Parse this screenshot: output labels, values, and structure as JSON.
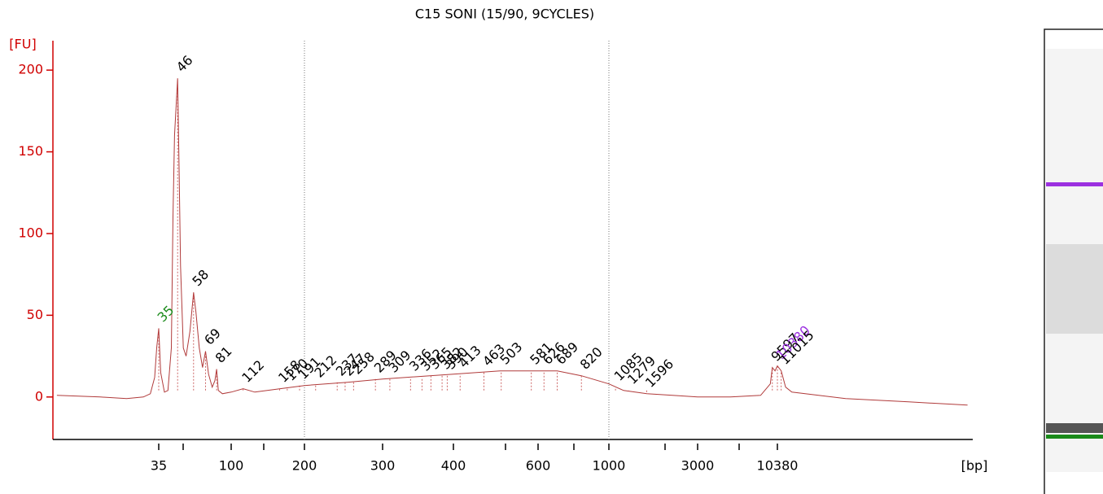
{
  "chart_data": {
    "type": "line",
    "title": "C15 SONI (15/90, 9CYCLES)",
    "ylabel": "[FU]",
    "xlabel": "[bp]",
    "xscale": "ladder",
    "ylim": [
      -26,
      218
    ],
    "yticks": [
      0,
      50,
      100,
      150,
      200
    ],
    "xticks": [
      35,
      100,
      200,
      300,
      400,
      600,
      1000,
      3000,
      10380
    ],
    "region": [
      200,
      1000
    ],
    "series": [
      {
        "name": "C15",
        "color": "#b03a3a",
        "x": [
          8,
          15,
          22,
          28,
          31,
          33,
          34,
          35,
          36,
          38,
          40,
          42,
          43,
          44,
          46,
          47,
          48,
          50,
          52,
          55,
          58,
          60,
          63,
          66,
          69,
          72,
          76,
          79,
          81,
          83,
          88,
          100,
          112,
          125,
          158,
          200,
          250,
          300,
          400,
          500,
          600,
          689,
          820,
          1000,
          1200,
          1600,
          2200,
          3000,
          5000,
          8000,
          9300,
          9597,
          10000,
          10380,
          11015,
          11800,
          13000,
          16000,
          30000,
          80000,
          200000
        ],
        "y": [
          1,
          0,
          -1,
          0,
          2,
          12,
          30,
          42,
          15,
          3,
          4,
          30,
          110,
          160,
          195,
          140,
          80,
          30,
          25,
          40,
          64,
          52,
          30,
          18,
          28,
          14,
          6,
          10,
          17,
          4,
          2,
          3,
          5,
          3,
          5,
          7,
          9,
          11,
          14,
          16,
          16,
          16,
          13,
          8,
          4,
          2,
          1,
          0,
          0,
          1,
          8,
          18,
          16,
          19,
          16,
          6,
          3,
          2,
          -1,
          -3,
          -5
        ]
      }
    ],
    "peaks": [
      {
        "x": 35,
        "y": 42,
        "color": "#1a8a1a"
      },
      {
        "x": 46,
        "y": 195,
        "color": "#000"
      },
      {
        "x": 58,
        "y": 64,
        "color": "#000"
      },
      {
        "x": 69,
        "y": 28,
        "color": "#000"
      },
      {
        "x": 81,
        "y": 17,
        "color": "#000"
      },
      {
        "x": 112,
        "y": 5,
        "color": "#000"
      },
      {
        "x": 158,
        "y": 5,
        "color": "#000"
      },
      {
        "x": 170,
        "y": 6,
        "color": "#000"
      },
      {
        "x": 191,
        "y": 7,
        "color": "#000"
      },
      {
        "x": 212,
        "y": 8,
        "color": "#000"
      },
      {
        "x": 237,
        "y": 9,
        "color": "#000"
      },
      {
        "x": 247,
        "y": 9,
        "color": "#000"
      },
      {
        "x": 258,
        "y": 10,
        "color": "#000"
      },
      {
        "x": 289,
        "y": 11,
        "color": "#000"
      },
      {
        "x": 309,
        "y": 11,
        "color": "#000"
      },
      {
        "x": 336,
        "y": 12,
        "color": "#000"
      },
      {
        "x": 352,
        "y": 12,
        "color": "#000"
      },
      {
        "x": 365,
        "y": 13,
        "color": "#000"
      },
      {
        "x": 382,
        "y": 13,
        "color": "#000"
      },
      {
        "x": 390,
        "y": 13,
        "color": "#000"
      },
      {
        "x": 413,
        "y": 14,
        "color": "#000"
      },
      {
        "x": 463,
        "y": 15,
        "color": "#000"
      },
      {
        "x": 503,
        "y": 16,
        "color": "#000"
      },
      {
        "x": 581,
        "y": 16,
        "color": "#000"
      },
      {
        "x": 626,
        "y": 16,
        "color": "#000"
      },
      {
        "x": 689,
        "y": 16,
        "color": "#000"
      },
      {
        "x": 820,
        "y": 13,
        "color": "#000"
      },
      {
        "x": 1085,
        "y": 6,
        "color": "#000"
      },
      {
        "x": 1279,
        "y": 4,
        "color": "#000"
      },
      {
        "x": 1596,
        "y": 2,
        "color": "#000"
      },
      {
        "x": 9597,
        "y": 18,
        "color": "#000"
      },
      {
        "x": 10380,
        "y": 19,
        "color": "#9b30e0"
      },
      {
        "x": 11015,
        "y": 16,
        "color": "#000"
      }
    ]
  }
}
